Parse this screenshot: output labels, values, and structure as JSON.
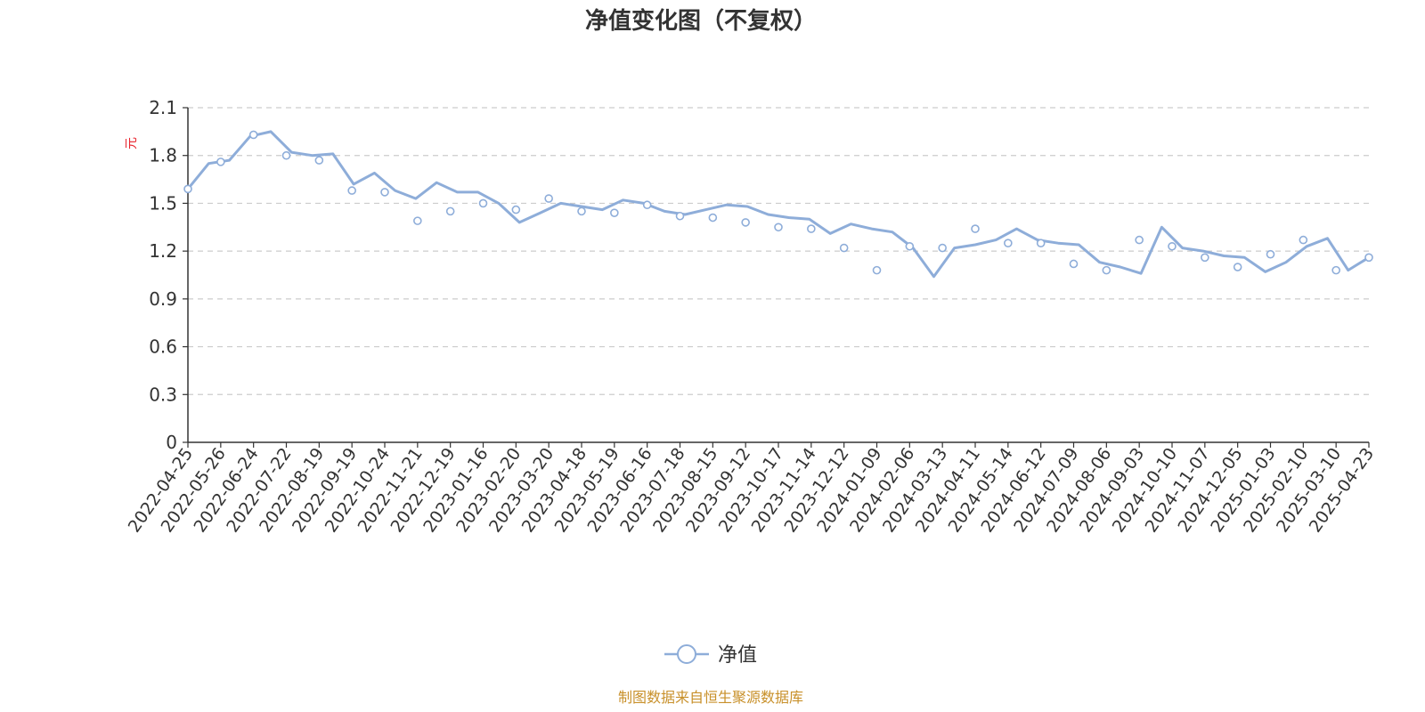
{
  "chart_data": {
    "type": "line",
    "title": "净值变化图（不复权）",
    "ylabel": "元",
    "ylim": [
      0,
      2.1
    ],
    "y_ticks": [
      "0",
      "0.3",
      "0.6",
      "0.9",
      "1.2",
      "1.5",
      "1.8",
      "2.1"
    ],
    "x_tick_labels": [
      "2022-04-25",
      "2022-05-26",
      "2022-06-24",
      "2022-07-22",
      "2022-08-19",
      "2022-09-19",
      "2022-10-24",
      "2022-11-21",
      "2022-12-19",
      "2023-01-16",
      "2023-02-20",
      "2023-03-20",
      "2023-04-18",
      "2023-05-19",
      "2023-06-16",
      "2023-07-18",
      "2023-08-15",
      "2023-09-12",
      "2023-10-17",
      "2023-11-14",
      "2023-12-12",
      "2024-01-09",
      "2024-02-06",
      "2024-03-13",
      "2024-04-11",
      "2024-05-14",
      "2024-06-12",
      "2024-07-09",
      "2024-08-06",
      "2024-09-03",
      "2024-10-10",
      "2024-11-07",
      "2024-12-05",
      "2025-01-03",
      "2025-02-10",
      "2025-03-10",
      "2025-04-23"
    ],
    "grid": "horizontal-dashed",
    "legend_position": "bottom-center",
    "series": [
      {
        "name": "净值",
        "color": "#8eadd9",
        "values": [
          1.59,
          1.75,
          1.77,
          1.92,
          1.95,
          1.82,
          1.8,
          1.81,
          1.62,
          1.69,
          1.58,
          1.53,
          1.63,
          1.57,
          1.57,
          1.5,
          1.38,
          1.44,
          1.5,
          1.48,
          1.46,
          1.52,
          1.5,
          1.45,
          1.43,
          1.46,
          1.49,
          1.48,
          1.43,
          1.41,
          1.4,
          1.31,
          1.37,
          1.34,
          1.32,
          1.22,
          1.04,
          1.22,
          1.24,
          1.27,
          1.34,
          1.27,
          1.25,
          1.24,
          1.13,
          1.1,
          1.06,
          1.35,
          1.22,
          1.2,
          1.17,
          1.16,
          1.07,
          1.13,
          1.23,
          1.28,
          1.08,
          1.16
        ],
        "markers": [
          1.59,
          1.76,
          1.93,
          1.8,
          1.77,
          1.58,
          1.57,
          1.39,
          1.45,
          1.5,
          1.46,
          1.53,
          1.45,
          1.44,
          1.49,
          1.42,
          1.41,
          1.38,
          1.35,
          1.34,
          1.22,
          1.08,
          1.23,
          1.22,
          1.34,
          1.25,
          1.25,
          1.12,
          1.08,
          1.27,
          1.23,
          1.16,
          1.1,
          1.18,
          1.27,
          1.08,
          1.16
        ]
      }
    ],
    "source": "制图数据来自恒生聚源数据库"
  }
}
